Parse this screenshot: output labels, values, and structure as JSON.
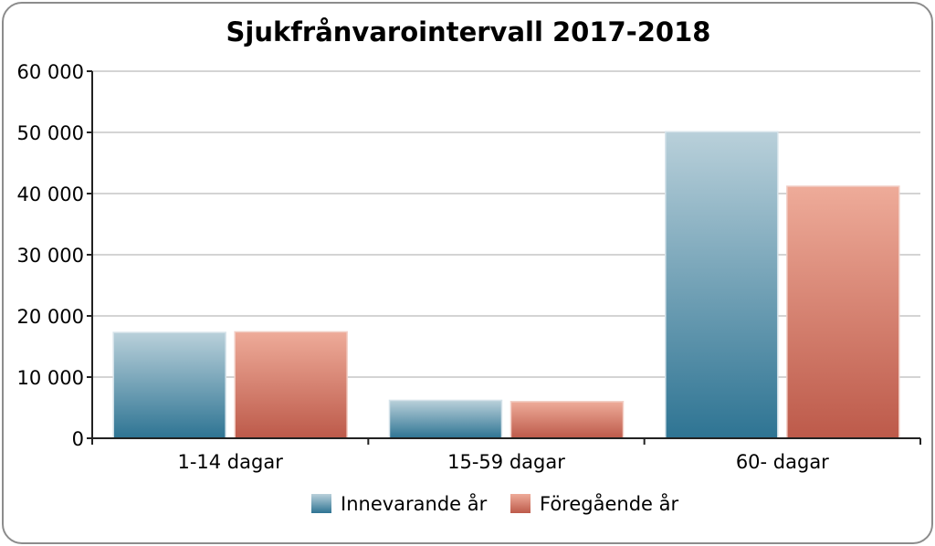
{
  "chart_data": {
    "type": "bar",
    "title": "Sjukfrånvarointervall 2017-2018",
    "categories": [
      "1-14 dagar",
      "15-59 dagar",
      "60- dagar"
    ],
    "series": [
      {
        "name": "Innevarande år",
        "values": [
          17300,
          6200,
          50100
        ],
        "color_top": "#b9d0da",
        "color_bottom": "#2e7493"
      },
      {
        "name": "Föregående år",
        "values": [
          17400,
          6000,
          41200
        ],
        "color_top": "#eeab99",
        "color_bottom": "#bd5a4a"
      }
    ],
    "ylim": [
      0,
      60000
    ],
    "yticks": [
      0,
      10000,
      20000,
      30000,
      40000,
      50000,
      60000
    ],
    "ytick_labels": [
      "0",
      "10 000",
      "20 000",
      "30 000",
      "40 000",
      "50 000",
      "60 000"
    ],
    "xlabel": "",
    "ylabel": "",
    "grid": true,
    "legend_position": "bottom"
  }
}
